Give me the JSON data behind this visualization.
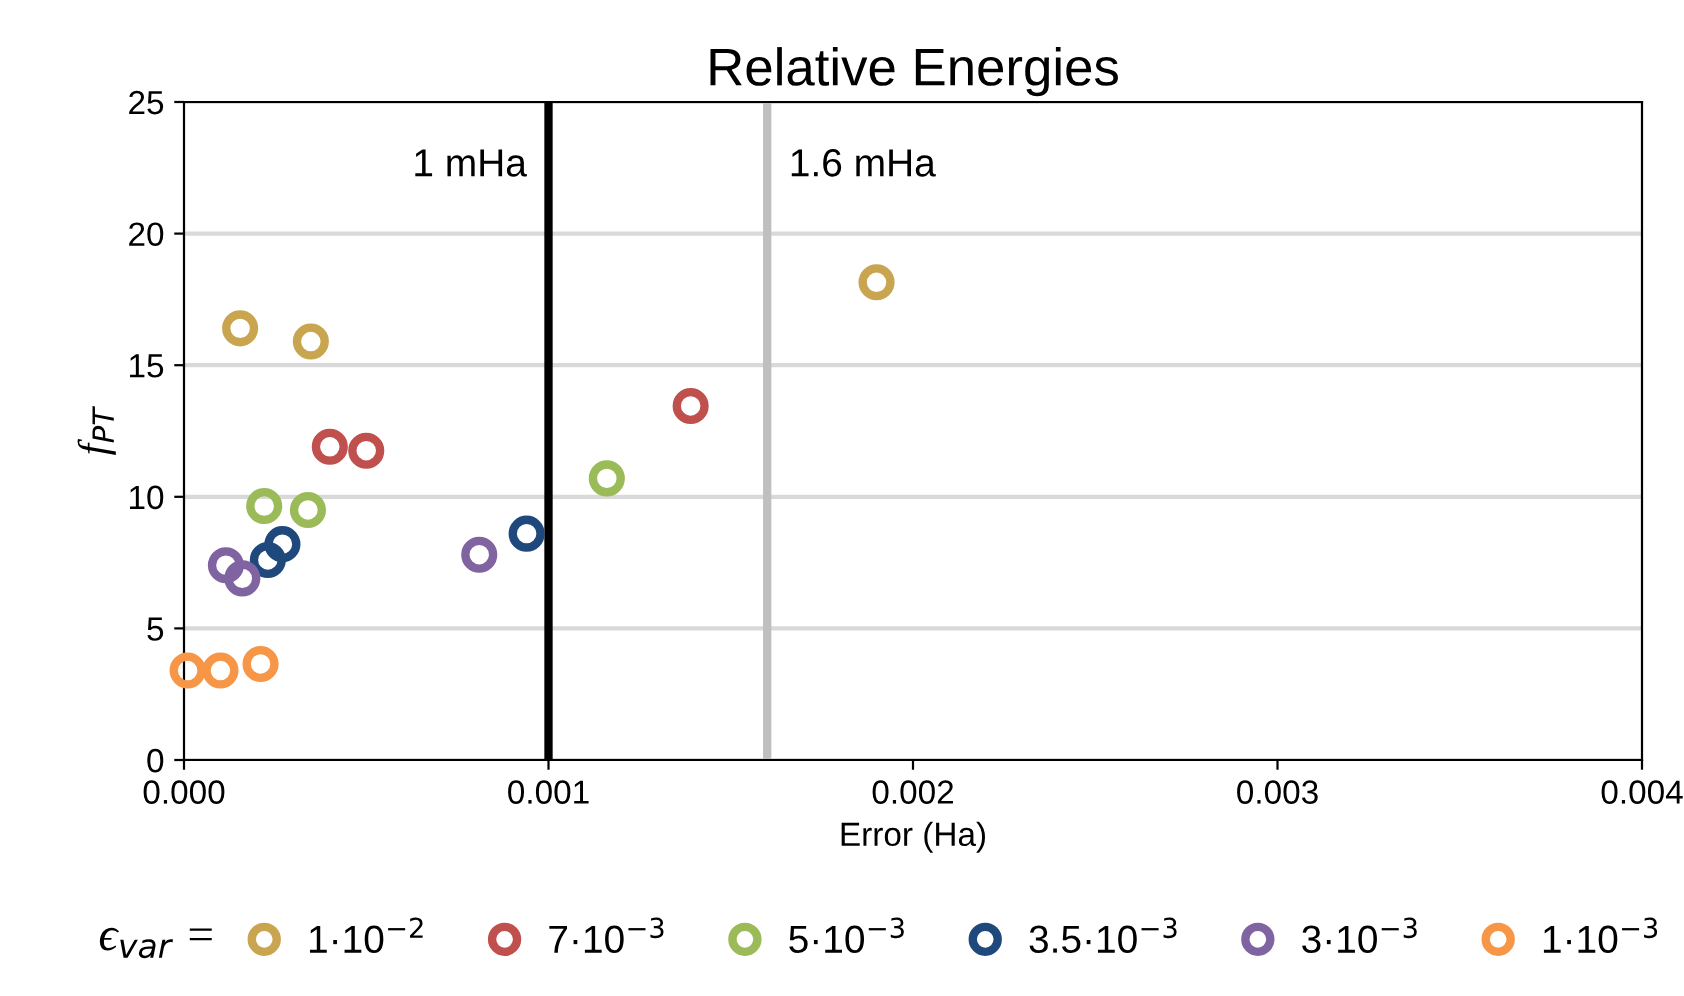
{
  "chart_data": {
    "type": "scatter",
    "title": "Relative Energies",
    "xlabel": "Error (Ha)",
    "ylabel": "f$_{PT}$",
    "legend_title": "ϵ$_{var}$ =",
    "xlim": [
      0,
      0.004
    ],
    "xticks": [
      {
        "value": 0,
        "label": "0.000"
      },
      {
        "value": 0.001,
        "label": "0.001"
      },
      {
        "value": 0.002,
        "label": "0.002"
      },
      {
        "value": 0.003,
        "label": "0.003"
      },
      {
        "value": 0.004,
        "label": "0.004"
      }
    ],
    "ylim": [
      0,
      25
    ],
    "yticks": [
      0,
      5,
      10,
      15,
      20,
      25
    ],
    "grid": "y",
    "legend": "bottom",
    "marker": "circle",
    "ref_lines": [
      {
        "axis": "x",
        "value": 0.001,
        "label": "1 mHa",
        "color": "#000000"
      },
      {
        "axis": "x",
        "value": 0.0016,
        "label": "1.6 mHa",
        "color": "#bfbfbf"
      }
    ],
    "series": [
      {
        "name": "1·10$^{−2}$",
        "color": "#c9a550",
        "x": [
          0.000154,
          0.000348,
          0.0019
        ],
        "values": [
          16.4,
          15.9,
          18.15
        ]
      },
      {
        "name": "7·10$^{−3}$",
        "color": "#c0504d",
        "x": [
          0.0004,
          0.0005,
          0.00139
        ],
        "values": [
          11.9,
          11.75,
          13.45
        ]
      },
      {
        "name": "5·10$^{−3}$",
        "color": "#9bbb59",
        "x": [
          0.00022,
          0.00034,
          0.00116
        ],
        "values": [
          9.65,
          9.5,
          10.7
        ]
      },
      {
        "name": "3.5·10$^{−3}$",
        "color": "#1f497d",
        "x": [
          0.00023,
          0.00027,
          0.00094
        ],
        "values": [
          7.6,
          8.2,
          8.6
        ]
      },
      {
        "name": "3·10$^{−3}$",
        "color": "#8064a2",
        "x": [
          0.000115,
          0.00016,
          0.00081
        ],
        "values": [
          7.4,
          6.9,
          7.8
        ]
      },
      {
        "name": "1·10$^{−3}$",
        "color": "#f79646",
        "x": [
          1e-05,
          0.0001,
          0.00021
        ],
        "values": [
          3.4,
          3.4,
          3.65
        ]
      }
    ]
  }
}
